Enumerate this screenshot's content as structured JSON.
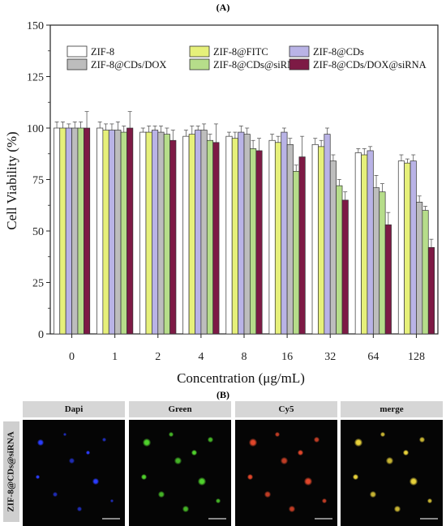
{
  "panel_a_label": "(A)",
  "panel_b_label": "(B)",
  "chart_data": {
    "type": "bar",
    "ylabel": "Cell Viability (%)",
    "xlabel": "Concentration (μg/mL)",
    "ylim": [
      0,
      150
    ],
    "yticks": [
      0,
      25,
      50,
      75,
      100,
      125,
      150
    ],
    "categories": [
      "0",
      "1",
      "2",
      "4",
      "8",
      "16",
      "32",
      "64",
      "128"
    ],
    "legend_position": "top",
    "series": [
      {
        "name": "ZIF-8",
        "color": "#ffffff",
        "values": [
          100,
          100,
          98,
          96,
          96,
          94,
          92,
          88,
          84
        ],
        "errors": [
          3,
          3,
          2,
          3,
          2,
          3,
          3,
          2,
          3
        ]
      },
      {
        "name": "ZIF-8@FITC",
        "color": "#e6f07a",
        "values": [
          100,
          99,
          98,
          97,
          95,
          93,
          91,
          87,
          83
        ],
        "errors": [
          3,
          3,
          3,
          4,
          3,
          3,
          3,
          3,
          2
        ]
      },
      {
        "name": "ZIF-8@CDs",
        "color": "#b9b3e6",
        "values": [
          100,
          99,
          99,
          99,
          98,
          98,
          97,
          89,
          84
        ],
        "errors": [
          2,
          3,
          2,
          2,
          3,
          2,
          3,
          2,
          3
        ]
      },
      {
        "name": "ZIF-8@CDs/DOX",
        "color": "#bdbdbd",
        "values": [
          100,
          99,
          98,
          99,
          97,
          92,
          84,
          71,
          64
        ],
        "errors": [
          3,
          4,
          3,
          3,
          3,
          3,
          3,
          6,
          3
        ]
      },
      {
        "name": "ZIF-8@CDs@siRNA",
        "color": "#b6dd8a",
        "values": [
          100,
          98,
          97,
          94,
          90,
          79,
          72,
          69,
          60
        ],
        "errors": [
          3,
          3,
          3,
          3,
          4,
          3,
          3,
          4,
          2
        ]
      },
      {
        "name": "ZIF-8@CDs/DOX@siRNA",
        "color": "#7d1a45",
        "values": [
          100,
          100,
          94,
          93,
          89,
          86,
          65,
          53,
          42
        ],
        "errors": [
          8,
          8,
          5,
          9,
          6,
          10,
          4,
          6,
          4
        ]
      }
    ]
  },
  "micro": {
    "row_label": "ZIF-8@CDs@siRNA",
    "columns": [
      {
        "label": "Dapi",
        "color": "#2a3cff"
      },
      {
        "label": "Green",
        "color": "#4fd12c"
      },
      {
        "label": "Cy5",
        "color": "#e0462a"
      },
      {
        "label": "merge",
        "color": "#e8d23a"
      }
    ]
  }
}
